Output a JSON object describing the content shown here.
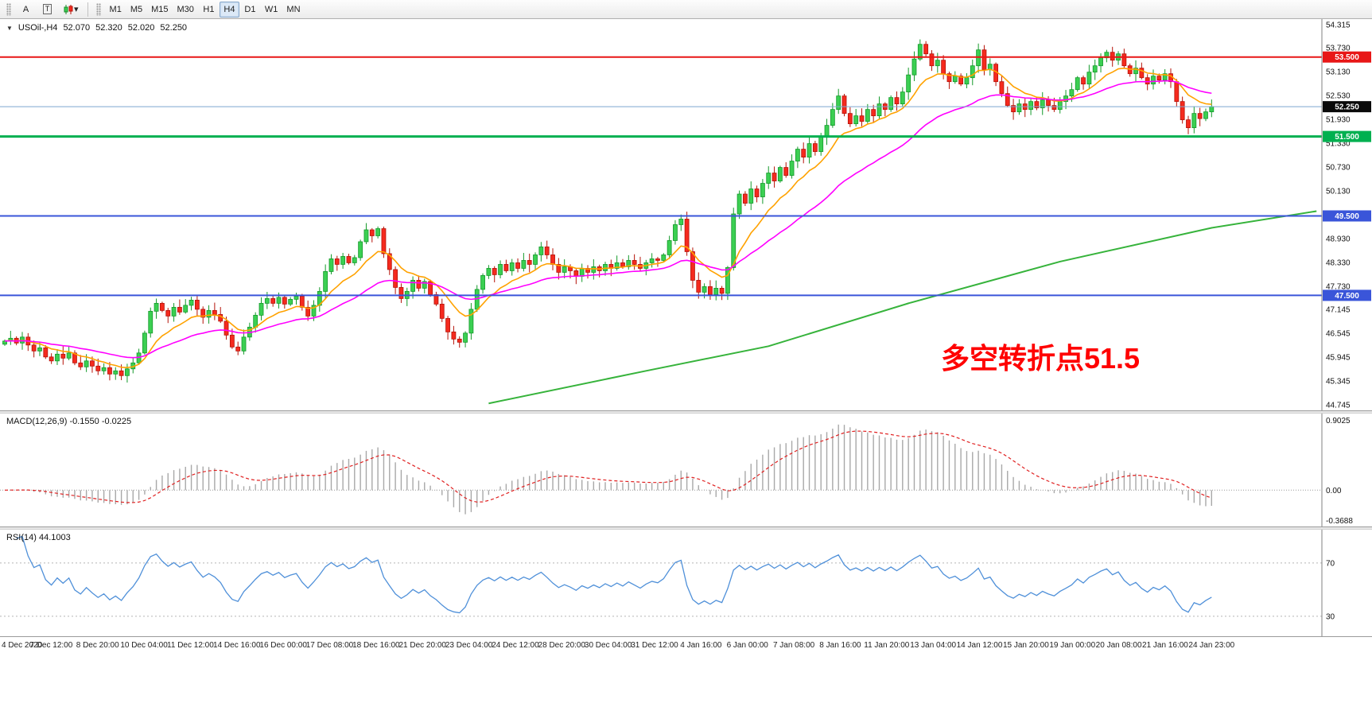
{
  "toolbar": {
    "tools": [
      {
        "label": "A"
      },
      {
        "label": "T"
      }
    ],
    "shapes_chevron": "▾",
    "timeframes": [
      "M1",
      "M5",
      "M15",
      "M30",
      "H1",
      "H4",
      "D1",
      "W1",
      "MN"
    ],
    "active_timeframe": "H4"
  },
  "header": {
    "arrow": "▼",
    "symbol": "USOil-,H4",
    "o": "52.070",
    "h": "52.320",
    "l": "52.020",
    "c": "52.250"
  },
  "chart": {
    "ylim": [
      44.745,
      54.315
    ],
    "price_axis": {
      "ticks": [
        "54.315",
        "53.730",
        "53.130",
        "52.530",
        "51.930",
        "51.330",
        "50.730",
        "50.130",
        "49.530",
        "48.930",
        "48.330",
        "47.730",
        "47.145",
        "46.545",
        "45.945",
        "45.345",
        "44.745"
      ],
      "badges": [
        {
          "value": "53.500",
          "color": "#e81717"
        },
        {
          "value": "52.250",
          "color": "#0a0a0a"
        },
        {
          "value": "51.500",
          "color": "#00b050"
        },
        {
          "value": "49.500",
          "color": "#3a55d9"
        },
        {
          "value": "47.500",
          "color": "#3a55d9"
        }
      ]
    },
    "hlines": [
      {
        "price": 53.5,
        "color": "#e81717",
        "width": 2
      },
      {
        "price": 51.5,
        "color": "#00b050",
        "width": 3
      },
      {
        "price": 49.5,
        "color": "#3a55d9",
        "width": 2
      },
      {
        "price": 47.5,
        "color": "#3a55d9",
        "width": 2
      }
    ],
    "current_price": {
      "value": 52.25,
      "color": "#7ca6cf"
    },
    "annotation": {
      "text": "多空转折点51.5",
      "color": "#ff0000"
    }
  },
  "chart_data": {
    "type": "candlestick",
    "symbol": "USOil",
    "timeframe": "H4",
    "ylim": [
      44.745,
      54.315
    ],
    "x_labels": [
      "4 Dec 2020",
      "7 Dec 12:00",
      "8 Dec 20:00",
      "10 Dec 04:00",
      "11 Dec 12:00",
      "14 Dec 16:00",
      "16 Dec 00:00",
      "17 Dec 08:00",
      "18 Dec 16:00",
      "21 Dec 20:00",
      "23 Dec 04:00",
      "24 Dec 12:00",
      "28 Dec 20:00",
      "30 Dec 04:00",
      "31 Dec 12:00",
      "4 Jan 16:00",
      "6 Jan 00:00",
      "7 Jan 08:00",
      "8 Jan 16:00",
      "11 Jan 20:00",
      "13 Jan 04:00",
      "14 Jan 12:00",
      "15 Jan 20:00",
      "19 Jan 00:00",
      "20 Jan 08:00",
      "21 Jan 16:00",
      "24 Jan 23:00"
    ],
    "closes": [
      46.35,
      46.42,
      46.3,
      46.45,
      46.25,
      46.1,
      46.18,
      45.95,
      45.85,
      46.02,
      45.92,
      46.05,
      45.8,
      45.7,
      45.85,
      45.72,
      45.6,
      45.68,
      45.52,
      45.6,
      45.48,
      45.65,
      45.8,
      46.05,
      46.55,
      47.1,
      47.3,
      47.12,
      46.98,
      47.2,
      47.08,
      47.25,
      47.38,
      47.15,
      46.95,
      47.12,
      47.02,
      46.85,
      46.5,
      46.2,
      46.1,
      46.45,
      46.7,
      47.0,
      47.3,
      47.42,
      47.3,
      47.45,
      47.28,
      47.4,
      47.48,
      47.2,
      46.98,
      47.25,
      47.6,
      48.1,
      48.42,
      48.28,
      48.48,
      48.32,
      48.45,
      48.85,
      49.15,
      49.0,
      49.18,
      48.55,
      48.15,
      47.7,
      47.42,
      47.6,
      47.88,
      47.68,
      47.85,
      47.52,
      47.28,
      46.92,
      46.58,
      46.4,
      46.32,
      46.55,
      47.15,
      47.65,
      48.0,
      48.18,
      48.02,
      48.28,
      48.12,
      48.32,
      48.18,
      48.38,
      48.28,
      48.52,
      48.72,
      48.52,
      48.28,
      48.08,
      48.22,
      48.12,
      47.98,
      48.18,
      48.08,
      48.22,
      48.12,
      48.28,
      48.18,
      48.32,
      48.22,
      48.38,
      48.28,
      48.18,
      48.32,
      48.42,
      48.38,
      48.52,
      48.88,
      49.28,
      49.42,
      48.6,
      47.88,
      47.58,
      47.72,
      47.52,
      47.68,
      47.55,
      48.2,
      49.55,
      50.05,
      49.82,
      50.18,
      49.98,
      50.32,
      50.58,
      50.38,
      50.72,
      50.52,
      50.88,
      51.18,
      50.98,
      51.32,
      51.12,
      51.48,
      51.78,
      52.18,
      52.52,
      52.08,
      51.82,
      52.02,
      51.88,
      52.18,
      52.02,
      52.32,
      52.18,
      52.48,
      52.32,
      52.62,
      53.05,
      53.45,
      53.82,
      53.58,
      53.28,
      53.42,
      53.08,
      52.88,
      53.02,
      52.82,
      52.98,
      53.28,
      53.68,
      53.18,
      53.32,
      52.88,
      52.58,
      52.28,
      52.12,
      52.32,
      52.18,
      52.38,
      52.22,
      52.42,
      52.28,
      52.18,
      52.38,
      52.52,
      52.68,
      52.98,
      52.82,
      53.12,
      53.28,
      53.48,
      53.62,
      53.42,
      53.58,
      53.28,
      53.08,
      53.22,
      52.98,
      52.82,
      53.02,
      52.92,
      53.08,
      52.88,
      52.38,
      51.92,
      51.72,
      52.08,
      51.95,
      52.12,
      52.25
    ],
    "overlays": {
      "ema_fast": {
        "period": 10,
        "color": "#ffa200"
      },
      "ema_slow": {
        "period": 30,
        "color": "#ff00ff"
      },
      "trend_ma": {
        "color": "#36b33b",
        "points": [
          [
            83,
            44.78
          ],
          [
            110,
            45.6
          ],
          [
            131,
            46.22
          ],
          [
            155,
            47.3
          ],
          [
            181,
            48.35
          ],
          [
            207,
            49.2
          ],
          [
            225,
            49.62
          ]
        ]
      }
    }
  },
  "macd": {
    "label": "MACD(12,26,9) -0.1550 -0.0225",
    "fast": 12,
    "slow": 26,
    "signal": 9,
    "scale_top": "0.9025",
    "scale_zero": "0.00",
    "scale_bottom": "-0.3688",
    "hist_color": "#a8a8a8",
    "signal_color": "#e02020"
  },
  "rsi": {
    "label": "RSI(14) 44.1003",
    "period": 14,
    "levels": [
      "70",
      "30"
    ],
    "color": "#4f90d9"
  }
}
